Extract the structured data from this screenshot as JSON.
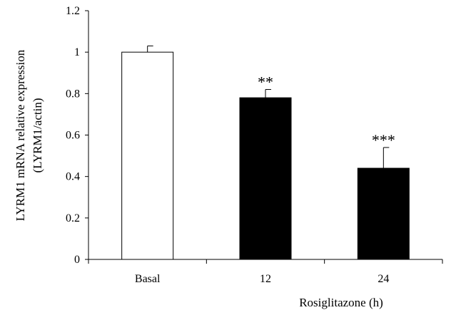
{
  "chart_data": {
    "type": "bar",
    "title": "",
    "xlabel": "Rosiglitazone (h)",
    "ylabel_lines": [
      "LYRM1 mRNA relative expression",
      "(LYRM1/actin)"
    ],
    "categories": [
      "Basal",
      "12",
      "24"
    ],
    "values": [
      1.0,
      0.78,
      0.44
    ],
    "errors": [
      0.03,
      0.04,
      0.1
    ],
    "significance": [
      "",
      "**",
      "***"
    ],
    "bar_colors": [
      "#ffffff",
      "#000000",
      "#000000"
    ],
    "ylim": [
      0,
      1.2
    ],
    "yticks": [
      0,
      0.2,
      0.4,
      0.6,
      0.8,
      1,
      1.2
    ],
    "ytick_labels": [
      "0",
      "0.2",
      "0.4",
      "0.6",
      "0.8",
      "1",
      "1.2"
    ],
    "grid": false,
    "legend": "none"
  }
}
